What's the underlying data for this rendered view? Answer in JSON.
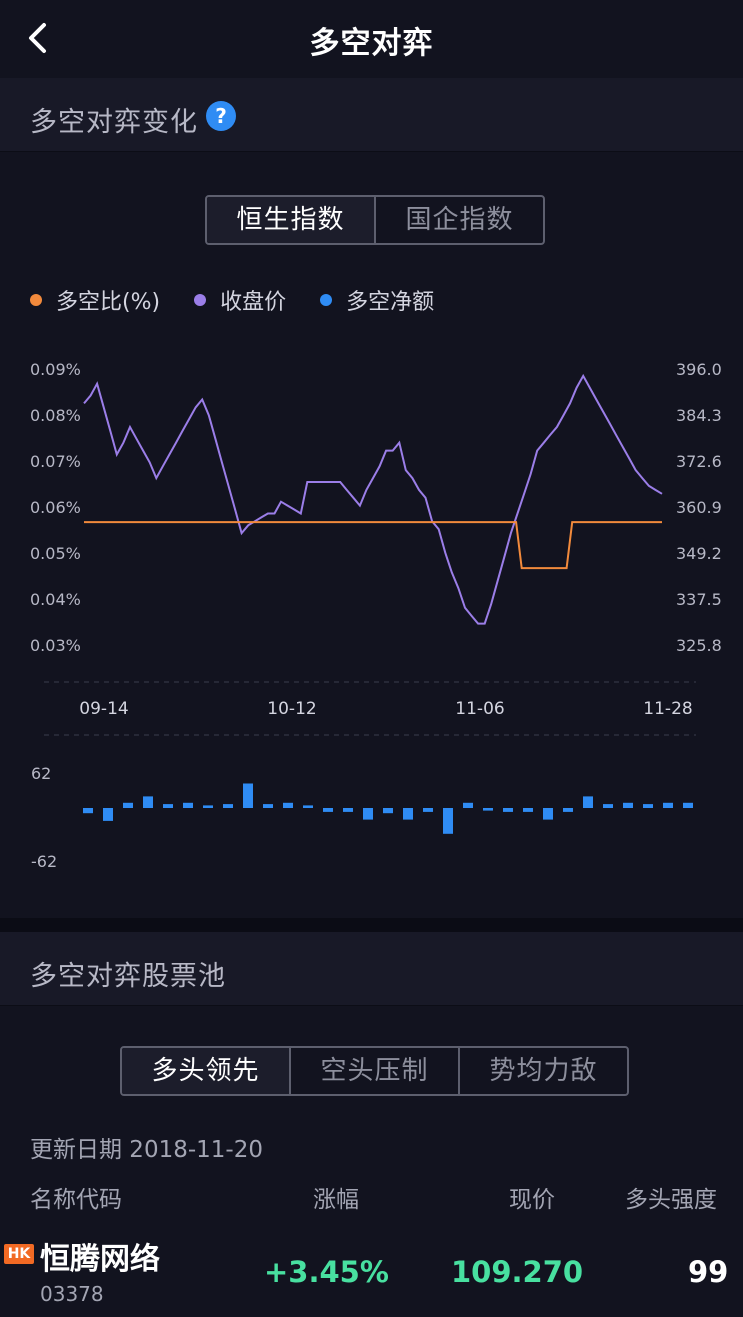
{
  "header": {
    "title": "多空对弈",
    "back_icon": "chevron-left-icon"
  },
  "section1": {
    "title": "多空对弈变化",
    "help_icon": "question-circle-icon"
  },
  "index_tabs": [
    {
      "label": "恒生指数",
      "active": true
    },
    {
      "label": "国企指数",
      "active": false
    }
  ],
  "legend": [
    {
      "label": "多空比(%)",
      "color": "#f28a3c"
    },
    {
      "label": "收盘价",
      "color": "#9b7ee8"
    },
    {
      "label": "多空净额",
      "color": "#2f8cf4"
    }
  ],
  "chart_data": [
    {
      "type": "line",
      "x_ticks": [
        "09-14",
        "10-12",
        "11-06",
        "11-28"
      ],
      "y_left_ticks": [
        "0.09%",
        "0.08%",
        "0.07%",
        "0.06%",
        "0.05%",
        "0.04%",
        "0.03%"
      ],
      "y_right_ticks": [
        "396.0",
        "384.3",
        "372.6",
        "360.9",
        "349.2",
        "337.5",
        "325.8"
      ],
      "ylim_left": [
        0.03,
        0.09
      ],
      "ylim_right": [
        325.8,
        396.0
      ],
      "series": [
        {
          "name": "多空比(%)",
          "axis": "left",
          "color": "#f28a3c",
          "values": [
            0.0565,
            0.0565,
            0.0565,
            0.0565,
            0.0565,
            0.0565,
            0.0565,
            0.0565,
            0.0565,
            0.0565,
            0.0565,
            0.0565,
            0.0565,
            0.0565,
            0.0565,
            0.0565,
            0.0565,
            0.0565,
            0.0565,
            0.0565,
            0.0565,
            0.0565,
            0.0565,
            0.0565,
            0.0565,
            0.0565,
            0.0565,
            0.0565,
            0.0565,
            0.0565,
            0.0565,
            0.0565,
            0.0565,
            0.0565,
            0.0565,
            0.0565,
            0.0565,
            0.0565,
            0.0565,
            0.0565,
            0.0565,
            0.0565,
            0.0565,
            0.0565,
            0.0565,
            0.0565,
            0.0565,
            0.0565,
            0.0565,
            0.0565,
            0.0565,
            0.0565,
            0.0565,
            0.0565,
            0.0565,
            0.0565,
            0.0565,
            0.0565,
            0.0565,
            0.0565,
            0.0565,
            0.0565,
            0.0565,
            0.0565,
            0.0565,
            0.0565,
            0.0565,
            0.0565,
            0.0565,
            0.0565,
            0.0565,
            0.0565,
            0.0565,
            0.0565,
            0.0565,
            0.0565,
            0.0565,
            0.0565,
            0.0465,
            0.0465,
            0.0465,
            0.0465,
            0.0465,
            0.0465,
            0.0465,
            0.0465,
            0.0465,
            0.0565,
            0.0565,
            0.0565,
            0.0565,
            0.0565,
            0.0565,
            0.0565,
            0.0565,
            0.0565,
            0.0565,
            0.0565,
            0.0565,
            0.0565,
            0.0565,
            0.0565,
            0.0565,
            0.0565
          ]
        },
        {
          "name": "收盘价",
          "axis": "right",
          "color": "#9b7ee8",
          "values": [
            387,
            389,
            392,
            386,
            380,
            374,
            377,
            381,
            378,
            375,
            372,
            368,
            371,
            374,
            377,
            380,
            383,
            386,
            388,
            384,
            378,
            372,
            366,
            360,
            354,
            356,
            357,
            358,
            359,
            359,
            362,
            361,
            360,
            359,
            367,
            367,
            367,
            367,
            367,
            367,
            365,
            363,
            361,
            365,
            368,
            371,
            375,
            375,
            377,
            370,
            368,
            365,
            363,
            357,
            355,
            349,
            344,
            340,
            335,
            333,
            331,
            331,
            336,
            342,
            348,
            354,
            359,
            364,
            369,
            375,
            377,
            379,
            381,
            384,
            387,
            391,
            394,
            391,
            388,
            385,
            382,
            379,
            376,
            373,
            370,
            368,
            366,
            365,
            364
          ]
        },
        {
          "name": "多空净额",
          "type": "bar",
          "color": "#2f8cf4",
          "ylim": [
            -62,
            62
          ],
          "y_ticks": [
            "62",
            "-62"
          ],
          "values": [
            -8,
            -20,
            8,
            18,
            6,
            8,
            4,
            6,
            38,
            6,
            8,
            4,
            -6,
            -6,
            -18,
            -8,
            -18,
            -6,
            -40,
            8,
            -4,
            -6,
            -6,
            -18,
            -6,
            18,
            6,
            8,
            6,
            8,
            8
          ]
        }
      ]
    }
  ],
  "section2": {
    "title": "多空对弈股票池"
  },
  "pool_tabs": [
    {
      "label": "多头领先",
      "active": true
    },
    {
      "label": "空头压制",
      "active": false
    },
    {
      "label": "势均力敌",
      "active": false
    }
  ],
  "update_text": "更新日期 2018-11-20",
  "table": {
    "headers": [
      "名称代码",
      "涨幅",
      "现价",
      "多头强度"
    ],
    "rows": [
      {
        "market": "HK",
        "name": "恒腾网络",
        "code": "03378",
        "change": "+3.45%",
        "price": "109.270",
        "strength": "99",
        "up_color": "#48e0a0"
      }
    ]
  }
}
